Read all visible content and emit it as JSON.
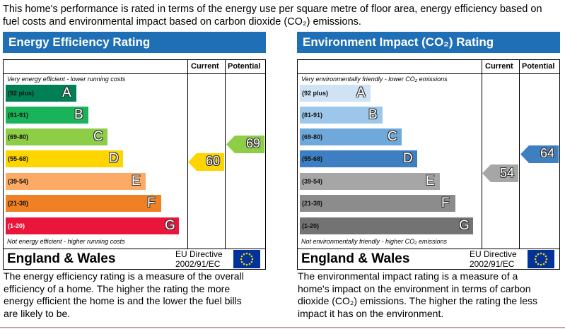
{
  "intro": [
    "This home's performance is rated in terms of the energy use per square metre of floor area, energy efficiency based on",
    "fuel costs and environmental impact based on carbon dioxide (CO₂) emissions."
  ],
  "panels": [
    {
      "title": "Energy Efficiency Rating",
      "columns": [
        "Current",
        "Potential"
      ],
      "top_note": "Very energy efficient - lower running costs",
      "bottom_note": "Not energy efficient - higher running costs",
      "bands": [
        {
          "range": "(92 plus)",
          "letter": "A"
        },
        {
          "range": "(81-91)",
          "letter": "B"
        },
        {
          "range": "(69-80)",
          "letter": "C"
        },
        {
          "range": "(55-68)",
          "letter": "D"
        },
        {
          "range": "(39-54)",
          "letter": "E"
        },
        {
          "range": "(21-38)",
          "letter": "F"
        },
        {
          "range": "(1-20)",
          "letter": "G"
        }
      ],
      "current": 60,
      "potential": 69,
      "region": "England & Wales",
      "directive": "EU Directive",
      "directive_code": "2002/91/EC",
      "description": [
        "The energy efficiency rating is a measure of the overall",
        "efficiency of a home. The higher the rating the more",
        "energy efficient the home is and the lower the fuel bills",
        "are likely to be."
      ]
    },
    {
      "title": "Environment Impact (CO₂) Rating",
      "columns": [
        "Current",
        "Potential"
      ],
      "top_note": "Very environmentally friendly - lower CO₂ emissions",
      "bottom_note": "Not environmentally friendly - higher CO₂ emissions",
      "bands": [
        {
          "range": "(92 plus)",
          "letter": "A"
        },
        {
          "range": "(81-91)",
          "letter": "B"
        },
        {
          "range": "(69-80)",
          "letter": "C"
        },
        {
          "range": "(55-68)",
          "letter": "D"
        },
        {
          "range": "(39-54)",
          "letter": "E"
        },
        {
          "range": "(21-38)",
          "letter": "F"
        },
        {
          "range": "(1-20)",
          "letter": "G"
        }
      ],
      "current": 54,
      "potential": 64,
      "region": "England & Wales",
      "directive": "EU Directive",
      "directive_code": "2002/91/EC",
      "description": [
        "The environmental impact rating is a measure of a",
        "home's impact on the environment in terms of carbon",
        "dioxide (CO₂) emissions. The higher the rating the less",
        "impact it has on the environment."
      ]
    }
  ]
}
